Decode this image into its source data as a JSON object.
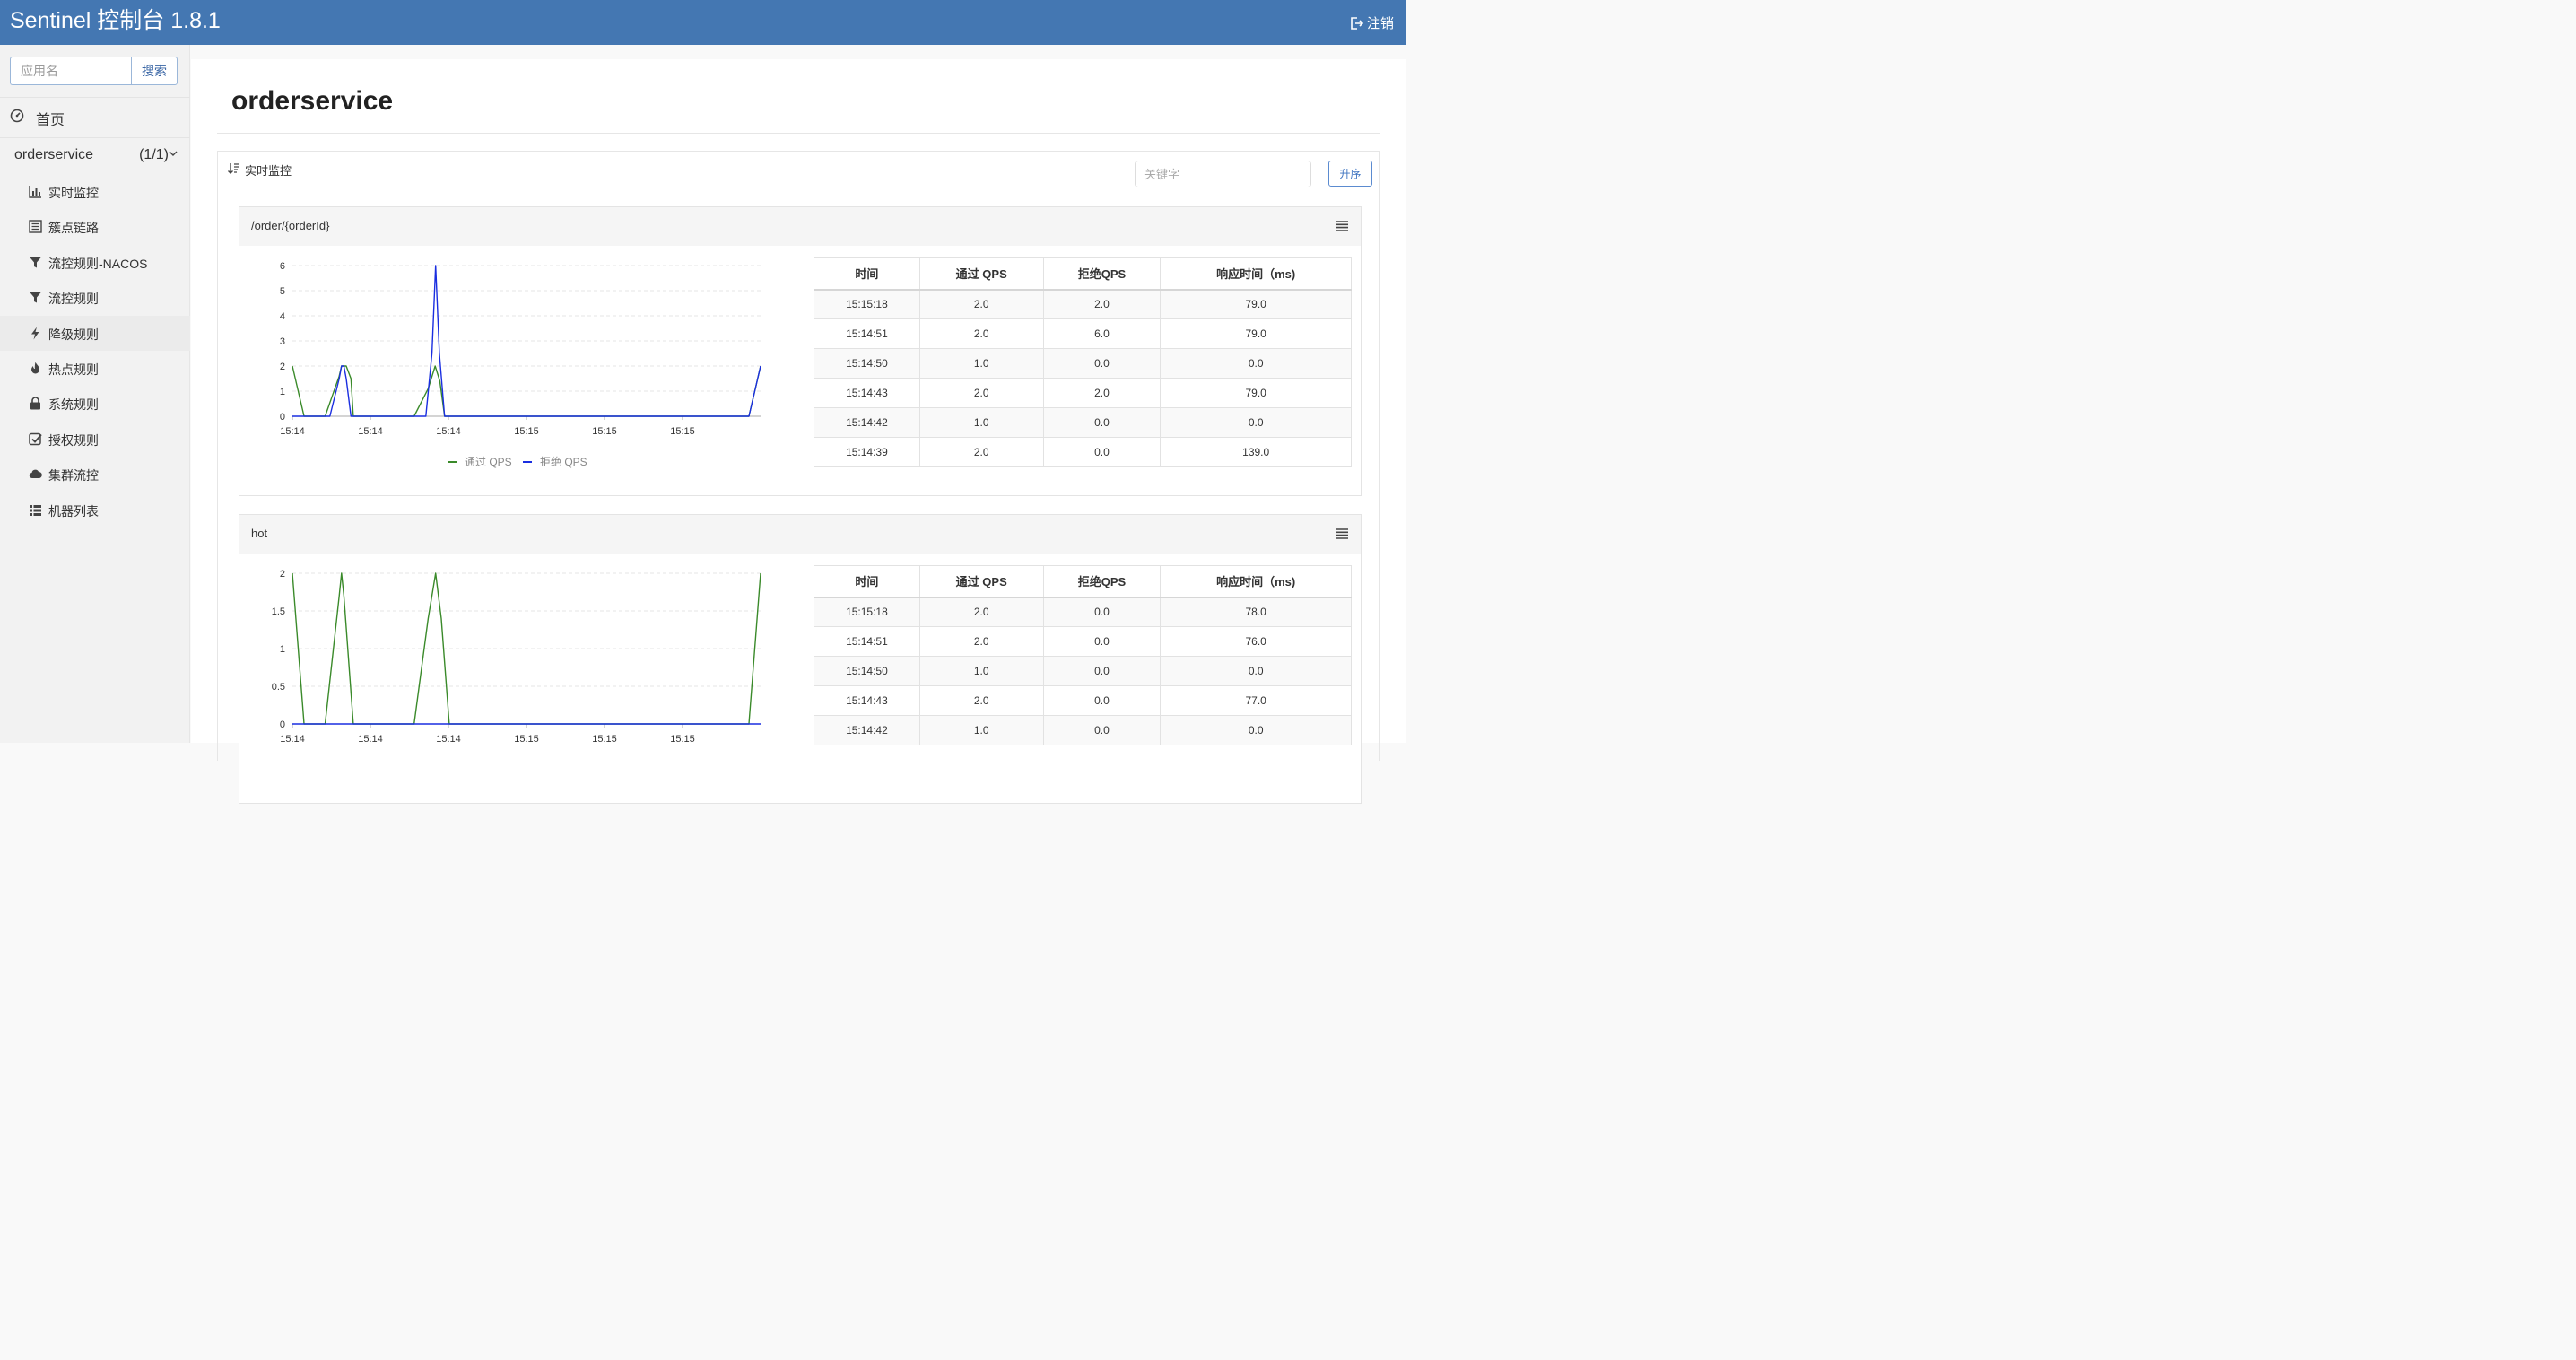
{
  "header": {
    "brand": "Sentinel 控制台 1.8.1",
    "logout": "注销"
  },
  "sidebar": {
    "search_placeholder": "应用名",
    "search_button": "搜索",
    "home": "首页",
    "app": {
      "name": "orderservice",
      "count": "(1/1)"
    },
    "items": [
      {
        "label": "实时监控",
        "icon": "bar-chart-icon"
      },
      {
        "label": "簇点链路",
        "icon": "list-alt-icon"
      },
      {
        "label": "流控规则-NACOS",
        "icon": "filter-icon"
      },
      {
        "label": "流控规则",
        "icon": "filter-icon"
      },
      {
        "label": "降级规则",
        "icon": "flash-icon"
      },
      {
        "label": "热点规则",
        "icon": "fire-icon"
      },
      {
        "label": "系统规则",
        "icon": "lock-icon"
      },
      {
        "label": "授权规则",
        "icon": "check-icon"
      },
      {
        "label": "集群流控",
        "icon": "cloud-icon"
      },
      {
        "label": "机器列表",
        "icon": "list-icon"
      }
    ]
  },
  "main": {
    "title": "orderservice",
    "panel_label": "实时监控",
    "keyword_placeholder": "关键字",
    "sort_button": "升序",
    "table_headers": [
      "时间",
      "通过 QPS",
      "拒绝QPS",
      "响应时间（ms)"
    ]
  },
  "cards": [
    {
      "resource": "/order/{orderId}",
      "rows": [
        [
          "15:15:18",
          "2.0",
          "2.0",
          "79.0"
        ],
        [
          "15:14:51",
          "2.0",
          "6.0",
          "79.0"
        ],
        [
          "15:14:50",
          "1.0",
          "0.0",
          "0.0"
        ],
        [
          "15:14:43",
          "2.0",
          "2.0",
          "79.0"
        ],
        [
          "15:14:42",
          "1.0",
          "0.0",
          "0.0"
        ],
        [
          "15:14:39",
          "2.0",
          "0.0",
          "139.0"
        ]
      ]
    },
    {
      "resource": "hot",
      "rows": [
        [
          "15:15:18",
          "2.0",
          "0.0",
          "78.0"
        ],
        [
          "15:14:51",
          "2.0",
          "0.0",
          "76.0"
        ],
        [
          "15:14:50",
          "1.0",
          "0.0",
          "0.0"
        ],
        [
          "15:14:43",
          "2.0",
          "0.0",
          "77.0"
        ],
        [
          "15:14:42",
          "1.0",
          "0.0",
          "0.0"
        ]
      ]
    }
  ],
  "chart_data": [
    {
      "type": "line",
      "x_ticks": [
        "15:14",
        "15:14",
        "15:14",
        "15:15",
        "15:15",
        "15:15"
      ],
      "x_range": [
        0,
        1
      ],
      "y_ticks": [
        "0",
        "1",
        "2",
        "3",
        "4",
        "5",
        "6"
      ],
      "ylim": [
        0,
        6
      ],
      "grid": true,
      "legend": "bottom",
      "series": [
        {
          "name": "通过 QPS",
          "color": "#3a8a2a",
          "points": [
            [
              0,
              2
            ],
            [
              0.025,
              0
            ],
            [
              0.07,
              0
            ],
            [
              0.1,
              1.6
            ],
            [
              0.105,
              2
            ],
            [
              0.115,
              2
            ],
            [
              0.125,
              1.5
            ],
            [
              0.13,
              0
            ],
            [
              0.26,
              0
            ],
            [
              0.29,
              1.1
            ],
            [
              0.305,
              2
            ],
            [
              0.315,
              1.4
            ],
            [
              0.325,
              0
            ],
            [
              0.975,
              0
            ],
            [
              1.0,
              2
            ]
          ]
        },
        {
          "name": "拒绝 QPS",
          "color": "#1a2ee0",
          "points": [
            [
              0,
              0
            ],
            [
              0.08,
              0
            ],
            [
              0.1,
              1.5
            ],
            [
              0.105,
              2
            ],
            [
              0.11,
              2
            ],
            [
              0.115,
              1.5
            ],
            [
              0.125,
              0
            ],
            [
              0.285,
              0
            ],
            [
              0.298,
              2.5
            ],
            [
              0.306,
              6
            ],
            [
              0.314,
              2.5
            ],
            [
              0.325,
              0
            ],
            [
              0.975,
              0
            ],
            [
              1.0,
              2
            ]
          ]
        }
      ]
    },
    {
      "type": "line",
      "x_ticks": [
        "15:14",
        "15:14",
        "15:14",
        "15:15",
        "15:15",
        "15:15"
      ],
      "x_range": [
        0,
        1
      ],
      "y_ticks": [
        "0",
        "0.5",
        "1",
        "1.5",
        "2"
      ],
      "ylim": [
        0,
        2
      ],
      "grid": true,
      "series": [
        {
          "name": "通过 QPS",
          "color": "#3a8a2a",
          "points": [
            [
              0,
              2
            ],
            [
              0.025,
              0
            ],
            [
              0.07,
              0
            ],
            [
              0.1,
              1.7
            ],
            [
              0.105,
              2
            ],
            [
              0.11,
              1.7
            ],
            [
              0.13,
              0
            ],
            [
              0.26,
              0
            ],
            [
              0.29,
              1.4
            ],
            [
              0.306,
              2
            ],
            [
              0.318,
              1.4
            ],
            [
              0.335,
              0
            ],
            [
              0.975,
              0
            ],
            [
              1.0,
              2
            ]
          ]
        },
        {
          "name": "拒绝 QPS",
          "color": "#1a2ee0",
          "points": [
            [
              0,
              0
            ],
            [
              1.0,
              0
            ]
          ]
        }
      ]
    }
  ]
}
